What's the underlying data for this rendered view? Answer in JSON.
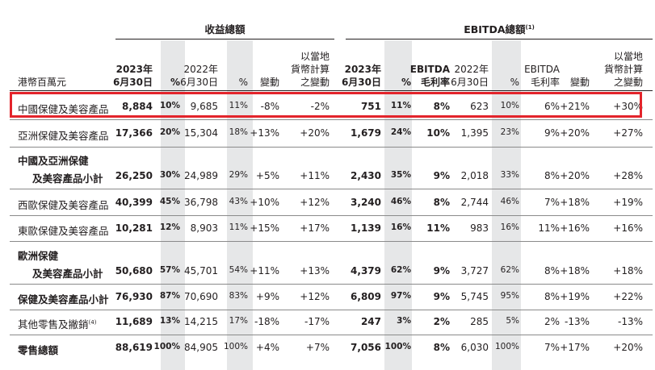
{
  "groups": {
    "revenue": "收益總額",
    "ebitda": "EBITDA總額",
    "ebitda_note": "(1)"
  },
  "headers": {
    "unit": "港幣百萬元",
    "rev_2023": "2023年\n6月30日",
    "rev_pct": "%",
    "rev_2022": "2022年\n6月30日",
    "rev_pct2": "%",
    "rev_change": "變動",
    "rev_local": "以當地\n貨幣計算\n之變動",
    "eb_2023": "2023年\n6月30日",
    "eb_pct": "%",
    "eb_margin": "EBITDA\n毛利率",
    "eb_2022": "2022年\n6月30日",
    "eb_pct2": "%",
    "eb_margin2": "EBITDA\n毛利率",
    "eb_change": "變動",
    "eb_local": "以當地\n貨幣計算\n之變動"
  },
  "rows": [
    {
      "label": [
        "中國保健及美容產品"
      ],
      "bold": false,
      "cells": [
        "8,884",
        "10%",
        "9,685",
        "11%",
        "-8%",
        "-2%",
        "751",
        "11%",
        "8%",
        "623",
        "10%",
        "6%",
        "+21%",
        "+30%"
      ]
    },
    {
      "label": [
        "亞洲保健及美容產品"
      ],
      "bold": false,
      "cells": [
        "17,366",
        "20%",
        "15,304",
        "18%",
        "+13%",
        "+20%",
        "1,679",
        "24%",
        "10%",
        "1,395",
        "23%",
        "9%",
        "+20%",
        "+27%"
      ]
    },
    {
      "label": [
        "中國及亞洲保健",
        "及美容產品小計"
      ],
      "bold": true,
      "cells": [
        "26,250",
        "30%",
        "24,989",
        "29%",
        "+5%",
        "+11%",
        "2,430",
        "35%",
        "9%",
        "2,018",
        "33%",
        "8%",
        "+20%",
        "+28%"
      ]
    },
    {
      "label": [
        "西歐保健及美容產品"
      ],
      "bold": false,
      "cells": [
        "40,399",
        "45%",
        "36,798",
        "43%",
        "+10%",
        "+12%",
        "3,240",
        "46%",
        "8%",
        "2,744",
        "46%",
        "7%",
        "+18%",
        "+19%"
      ]
    },
    {
      "label": [
        "東歐保健及美容產品"
      ],
      "bold": false,
      "cells": [
        "10,281",
        "12%",
        "8,903",
        "11%",
        "+15%",
        "+17%",
        "1,139",
        "16%",
        "11%",
        "983",
        "16%",
        "11%",
        "+16%",
        "+16%"
      ]
    },
    {
      "label": [
        "歐洲保健",
        "及美容產品小計"
      ],
      "bold": true,
      "cells": [
        "50,680",
        "57%",
        "45,701",
        "54%",
        "+11%",
        "+13%",
        "4,379",
        "62%",
        "9%",
        "3,727",
        "62%",
        "8%",
        "+18%",
        "+18%"
      ]
    },
    {
      "label": [
        "保健及美容產品小計"
      ],
      "bold": true,
      "cells": [
        "76,930",
        "87%",
        "70,690",
        "83%",
        "+9%",
        "+12%",
        "6,809",
        "97%",
        "9%",
        "5,745",
        "95%",
        "8%",
        "+19%",
        "+22%"
      ]
    },
    {
      "label": [
        "其他零售及撇銷"
      ],
      "note": "(4)",
      "bold": false,
      "cells": [
        "11,689",
        "13%",
        "14,215",
        "17%",
        "-18%",
        "-17%",
        "247",
        "3%",
        "2%",
        "285",
        "5%",
        "2%",
        "-13%",
        "-13%"
      ]
    },
    {
      "label": [
        "零售總額"
      ],
      "bold": true,
      "cells": [
        "88,619",
        "100%",
        "84,905",
        "100%",
        "+4%",
        "+7%",
        "7,056",
        "100%",
        "8%",
        "6,030",
        "100%",
        "7%",
        "+17%",
        "+20%"
      ]
    }
  ]
}
